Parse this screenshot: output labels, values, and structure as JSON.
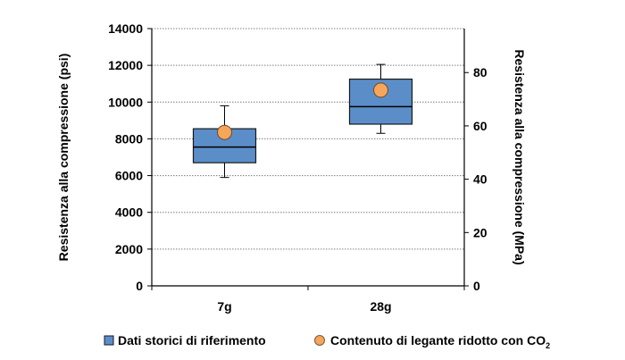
{
  "chart_data": {
    "type": "box",
    "categories": [
      "7g",
      "28g"
    ],
    "left_axis": {
      "label": "Resistenza alla compressione (psi)",
      "range": [
        0,
        14000
      ],
      "ticks": [
        "0",
        "2000",
        "4000",
        "6000",
        "8000",
        "10000",
        "12000",
        "14000"
      ]
    },
    "right_axis": {
      "label": "Resistenza alla compressione (MPa)",
      "range": [
        0,
        96.5
      ],
      "ticks": [
        "0",
        "20",
        "40",
        "60",
        "80"
      ]
    },
    "grid": "horizontal dotted",
    "legend_position": "bottom",
    "series": [
      {
        "name": "Dati storici di riferimento",
        "kind": "box",
        "color": "#5b8ec9",
        "boxes": [
          {
            "category": "7g",
            "min": 5900,
            "q1": 6700,
            "median": 7550,
            "q3": 8550,
            "max": 9800
          },
          {
            "category": "28g",
            "min": 8300,
            "q1": 8800,
            "median": 9750,
            "q3": 11250,
            "max": 12050
          }
        ]
      },
      {
        "name": "Contenuto di legante ridotto con CO",
        "name_subscript": "2",
        "kind": "point",
        "color": "#f5a65b",
        "values": [
          {
            "category": "7g",
            "value": 8350
          },
          {
            "category": "28g",
            "value": 10650
          }
        ]
      }
    ]
  }
}
